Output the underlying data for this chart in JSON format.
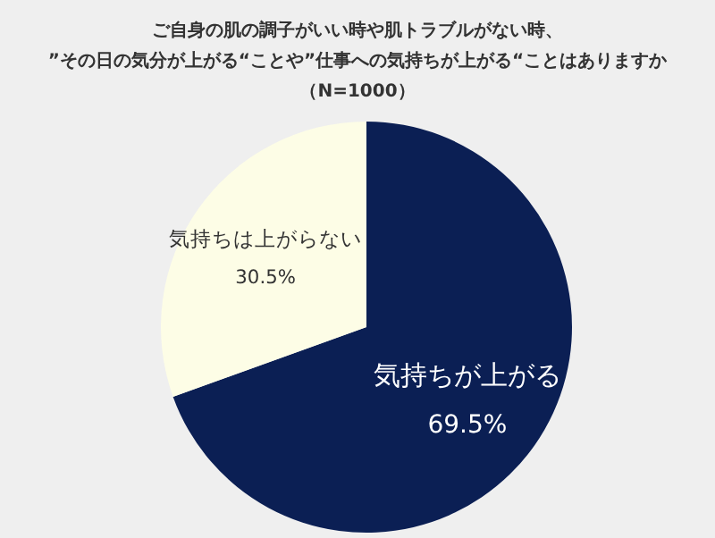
{
  "chart_data": {
    "type": "pie",
    "title": "ご自身の肌の調子がいい時や肌トラブルがない時、”その日の気分が上がる“ことや”仕事への気持ちが上がる“ことはありますか",
    "subtitle": "（N=1000）",
    "categories": [
      "気持ちが上がる",
      "気持ちは上がらない"
    ],
    "values": [
      69.5,
      30.5
    ],
    "colors": [
      "#0b1f54",
      "#fdfde6"
    ],
    "value_labels": [
      "69.5%",
      "30.5%"
    ]
  }
}
